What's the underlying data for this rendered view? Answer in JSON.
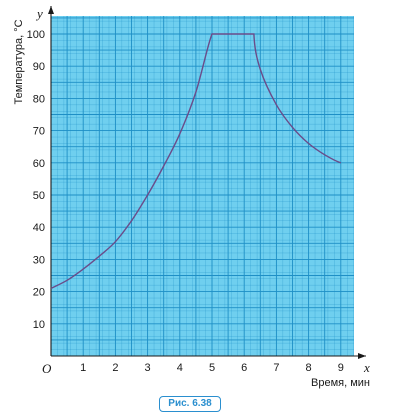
{
  "caption": "Рис.  6.38",
  "chart_data": {
    "type": "line",
    "xlabel": "Время, мин",
    "ylabel": "Температура, °C",
    "x_axis_var": "x",
    "y_axis_var": "y",
    "origin_label": "O",
    "xlim": [
      0,
      10
    ],
    "ylim": [
      0,
      105
    ],
    "x_ticks": [
      1,
      2,
      3,
      4,
      5,
      6,
      7,
      8,
      9
    ],
    "y_ticks": [
      10,
      20,
      30,
      40,
      50,
      60,
      70,
      80,
      90,
      100
    ],
    "grid": true,
    "colors": {
      "grid_bg": "#6fcfef",
      "grid_line": "#1e8fc6",
      "curve": "#6a4c8a"
    },
    "x": [
      0,
      0.5,
      1,
      1.5,
      2,
      2.5,
      3,
      3.5,
      4,
      4.5,
      5,
      5.5,
      6,
      6.3,
      6.5,
      7,
      7.5,
      8,
      8.5,
      9
    ],
    "y": [
      21,
      23.5,
      27,
      31,
      35.5,
      42,
      50,
      59,
      69,
      82,
      100,
      100,
      100,
      100,
      89,
      78,
      71,
      66,
      62.5,
      60
    ]
  }
}
